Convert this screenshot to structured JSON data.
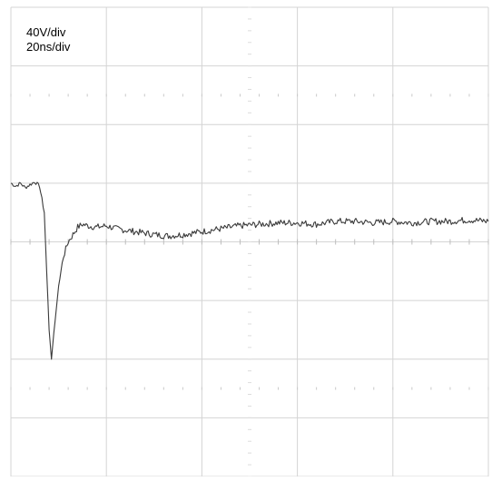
{
  "scale": {
    "volts_per_div": "40V/div",
    "time_per_div": "20ns/div"
  },
  "chart_data": {
    "type": "line",
    "title": "",
    "xlabel": "",
    "ylabel": "",
    "x_unit": "ns",
    "y_unit": "V",
    "xlim": [
      0,
      100
    ],
    "ylim": [
      -160,
      160
    ],
    "grid": true,
    "series": [
      {
        "color": "#3a3a3a",
        "x": [
          0,
          1,
          2,
          3,
          4,
          5,
          6,
          7,
          7.5,
          8,
          8.5,
          9,
          10,
          11,
          12,
          13,
          14,
          15,
          16,
          18,
          20,
          22,
          24,
          26,
          28,
          30,
          33,
          36,
          40,
          44,
          48,
          52,
          56,
          60,
          64,
          68,
          72,
          76,
          80,
          84,
          88,
          92,
          96,
          100
        ],
        "y": [
          40,
          38,
          40,
          37,
          39,
          41,
          38,
          20,
          -20,
          -60,
          -80,
          -62,
          -30,
          -10,
          0,
          5,
          10,
          12,
          11,
          10,
          11,
          9,
          8,
          7,
          6,
          5,
          4,
          5,
          7,
          9,
          11,
          12,
          13,
          13,
          12,
          14,
          14,
          13,
          14,
          13,
          14,
          14,
          15,
          14
        ]
      }
    ]
  },
  "colors": {
    "grid": "#d4d4d4",
    "trace": "#3a3a3a",
    "background": "#ffffff"
  }
}
